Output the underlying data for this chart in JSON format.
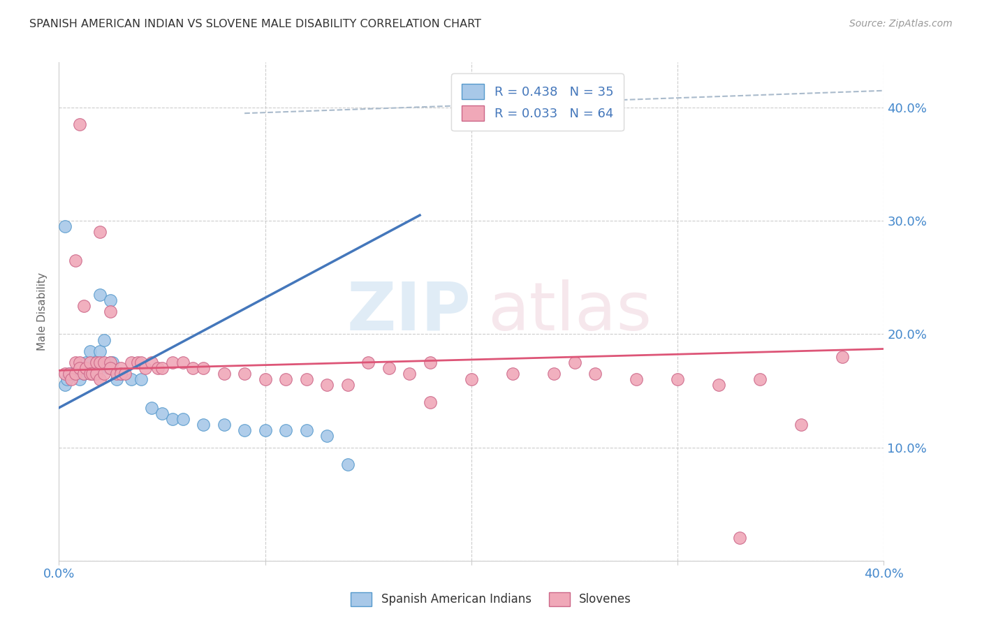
{
  "title": "SPANISH AMERICAN INDIAN VS SLOVENE MALE DISABILITY CORRELATION CHART",
  "source": "Source: ZipAtlas.com",
  "ylabel": "Male Disability",
  "xlim": [
    0.0,
    0.4
  ],
  "ylim": [
    0.0,
    0.44
  ],
  "blue_color": "#a8c8e8",
  "pink_color": "#f0a8b8",
  "blue_edge_color": "#5599cc",
  "pink_edge_color": "#cc6688",
  "blue_line_color": "#4477bb",
  "pink_line_color": "#dd5577",
  "dashed_line_color": "#aabbcc",
  "legend_blue_label": "R = 0.438   N = 35",
  "legend_pink_label": "R = 0.033   N = 64",
  "legend_bottom_label1": "Spanish American Indians",
  "legend_bottom_label2": "Slovenes",
  "blue_scatter_x": [
    0.003,
    0.004,
    0.005,
    0.006,
    0.008,
    0.01,
    0.012,
    0.013,
    0.015,
    0.016,
    0.018,
    0.02,
    0.022,
    0.024,
    0.025,
    0.026,
    0.028,
    0.03,
    0.035,
    0.04,
    0.045,
    0.05,
    0.055,
    0.06,
    0.07,
    0.08,
    0.09,
    0.1,
    0.11,
    0.12,
    0.13,
    0.14,
    0.02,
    0.025,
    0.003
  ],
  "blue_scatter_y": [
    0.155,
    0.16,
    0.165,
    0.165,
    0.165,
    0.16,
    0.165,
    0.175,
    0.185,
    0.165,
    0.175,
    0.185,
    0.195,
    0.17,
    0.175,
    0.175,
    0.16,
    0.165,
    0.16,
    0.16,
    0.135,
    0.13,
    0.125,
    0.125,
    0.12,
    0.12,
    0.115,
    0.115,
    0.115,
    0.115,
    0.11,
    0.085,
    0.235,
    0.23,
    0.295
  ],
  "pink_scatter_x": [
    0.003,
    0.005,
    0.006,
    0.008,
    0.008,
    0.01,
    0.01,
    0.012,
    0.013,
    0.015,
    0.015,
    0.016,
    0.018,
    0.018,
    0.02,
    0.02,
    0.022,
    0.022,
    0.025,
    0.025,
    0.028,
    0.03,
    0.03,
    0.032,
    0.035,
    0.038,
    0.04,
    0.042,
    0.045,
    0.048,
    0.05,
    0.055,
    0.06,
    0.065,
    0.07,
    0.08,
    0.09,
    0.1,
    0.11,
    0.12,
    0.13,
    0.14,
    0.15,
    0.16,
    0.17,
    0.18,
    0.2,
    0.22,
    0.24,
    0.26,
    0.28,
    0.3,
    0.32,
    0.34,
    0.36,
    0.38,
    0.008,
    0.012,
    0.02,
    0.025,
    0.18,
    0.01,
    0.25,
    0.33
  ],
  "pink_scatter_y": [
    0.165,
    0.165,
    0.16,
    0.175,
    0.165,
    0.175,
    0.17,
    0.165,
    0.17,
    0.175,
    0.165,
    0.165,
    0.175,
    0.165,
    0.175,
    0.16,
    0.175,
    0.165,
    0.175,
    0.17,
    0.165,
    0.17,
    0.165,
    0.165,
    0.175,
    0.175,
    0.175,
    0.17,
    0.175,
    0.17,
    0.17,
    0.175,
    0.175,
    0.17,
    0.17,
    0.165,
    0.165,
    0.16,
    0.16,
    0.16,
    0.155,
    0.155,
    0.175,
    0.17,
    0.165,
    0.175,
    0.16,
    0.165,
    0.165,
    0.165,
    0.16,
    0.16,
    0.155,
    0.16,
    0.12,
    0.18,
    0.265,
    0.225,
    0.29,
    0.22,
    0.14,
    0.385,
    0.175,
    0.02
  ],
  "blue_line_x": [
    0.0,
    0.175
  ],
  "blue_line_y": [
    0.135,
    0.305
  ],
  "pink_line_x": [
    0.0,
    0.4
  ],
  "pink_line_y": [
    0.168,
    0.187
  ],
  "dashed_line_x": [
    0.09,
    0.4
  ],
  "dashed_line_y": [
    0.395,
    0.415
  ]
}
